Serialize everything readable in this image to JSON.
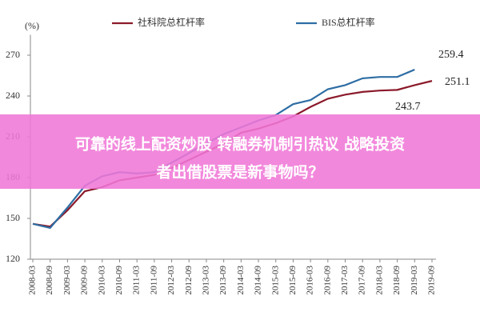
{
  "chart_data": {
    "type": "line",
    "y_label": "(%)",
    "categories": [
      "2008-03",
      "2008-09",
      "2009-03",
      "2009-09",
      "2010-03",
      "2010-09",
      "2011-03",
      "2011-09",
      "2012-03",
      "2012-09",
      "2013-03",
      "2013-09",
      "2014-03",
      "2014-09",
      "2015-03",
      "2015-09",
      "2016-03",
      "2016-09",
      "2017-03",
      "2017-09",
      "2018-03",
      "2018-09",
      "2019-03",
      "2019-09"
    ],
    "series": [
      {
        "name": "社科院总杠杆率",
        "color": "#8b1a2b",
        "values": [
          146,
          144,
          156,
          170,
          173,
          178,
          180,
          182,
          187,
          193,
          199,
          205,
          213,
          216,
          220,
          225,
          232,
          238,
          241,
          243,
          244,
          244.5,
          248,
          251.1
        ]
      },
      {
        "name": "BIS总杠杆率",
        "color": "#2e6da4",
        "values": [
          146,
          143,
          158,
          174,
          181,
          184,
          183,
          184,
          191,
          198,
          205,
          212,
          217,
          222,
          226,
          234,
          237,
          245,
          248,
          253,
          254,
          254,
          259.4,
          null
        ]
      }
    ],
    "annotations": [
      "259.4",
      "251.1",
      "243.7"
    ],
    "ylim": [
      120,
      285
    ],
    "yticks": [
      120,
      150,
      180,
      210,
      240,
      270
    ],
    "grid": false,
    "banner": {
      "lines": [
        "可靠的线上配资炒股 转融券机制引热议 战略投资",
        "者出借股票是新事物吗？"
      ]
    }
  }
}
